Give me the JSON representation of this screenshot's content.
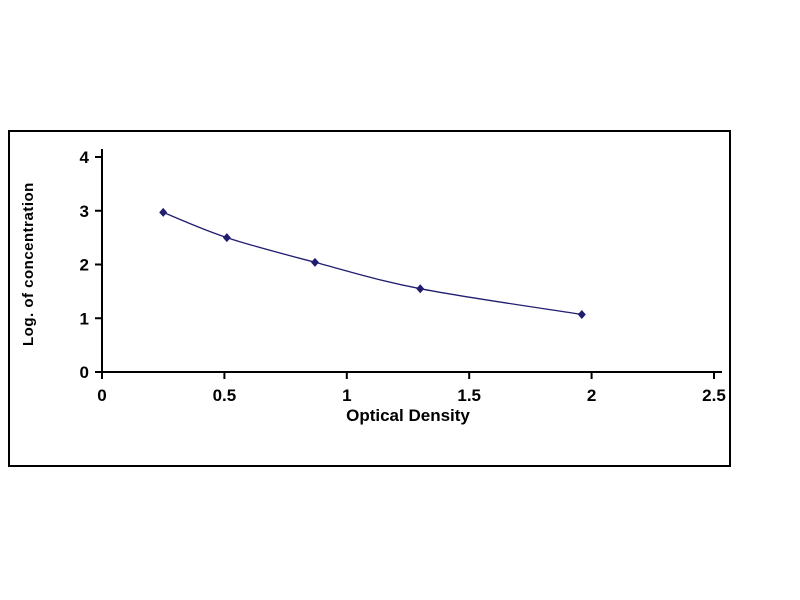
{
  "page": {
    "background_color": "#ffffff"
  },
  "chart_data": {
    "type": "line",
    "title": "",
    "xlabel": "Optical Density",
    "ylabel": "Log. of concentration",
    "x": [
      0.25,
      0.51,
      0.87,
      1.3,
      1.96
    ],
    "y": [
      2.97,
      2.5,
      2.04,
      1.55,
      1.07
    ],
    "xlim": [
      0,
      2.5
    ],
    "ylim": [
      0,
      4
    ],
    "xticks": [
      0,
      0.5,
      1,
      1.5,
      2,
      2.5
    ],
    "xtick_labels": [
      "0",
      "0.5",
      "1",
      "1.5",
      "2",
      "2.5"
    ],
    "yticks": [
      0,
      1,
      2,
      3,
      4
    ],
    "ytick_labels": [
      "0",
      "1",
      "2",
      "3",
      "4"
    ],
    "grid": false,
    "legend": false,
    "marker": "diamond",
    "line_color": "#211d70",
    "marker_color": "#211d70",
    "axis_color": "#000000"
  }
}
